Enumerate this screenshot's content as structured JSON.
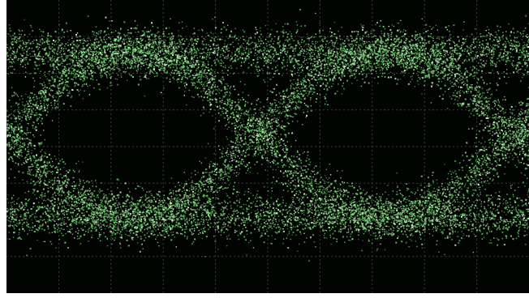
{
  "colors": {
    "screen_background": "#020402",
    "graticule": "#3a3f3a",
    "trace": "#6fd66f",
    "trace_bright": "#c8f5c0",
    "frame": "#ffffff"
  },
  "chart_data": {
    "type": "scatter",
    "description_style": "eye-diagram",
    "title": "",
    "xlabel": "",
    "ylabel": "",
    "xlim": [
      0,
      10
    ],
    "ylim": [
      0,
      8
    ],
    "grid": true,
    "grid_divisions": {
      "x": 10,
      "y": 8
    },
    "levels": {
      "high": 6.6,
      "low": 2.1
    },
    "crossings_x": [
      0.0,
      4.8,
      9.7
    ],
    "unit_interval": 4.85,
    "noise_sigma": 0.32,
    "series": [
      {
        "values": "random-noise-samples-around-high-low-and-transitions"
      }
    ]
  }
}
